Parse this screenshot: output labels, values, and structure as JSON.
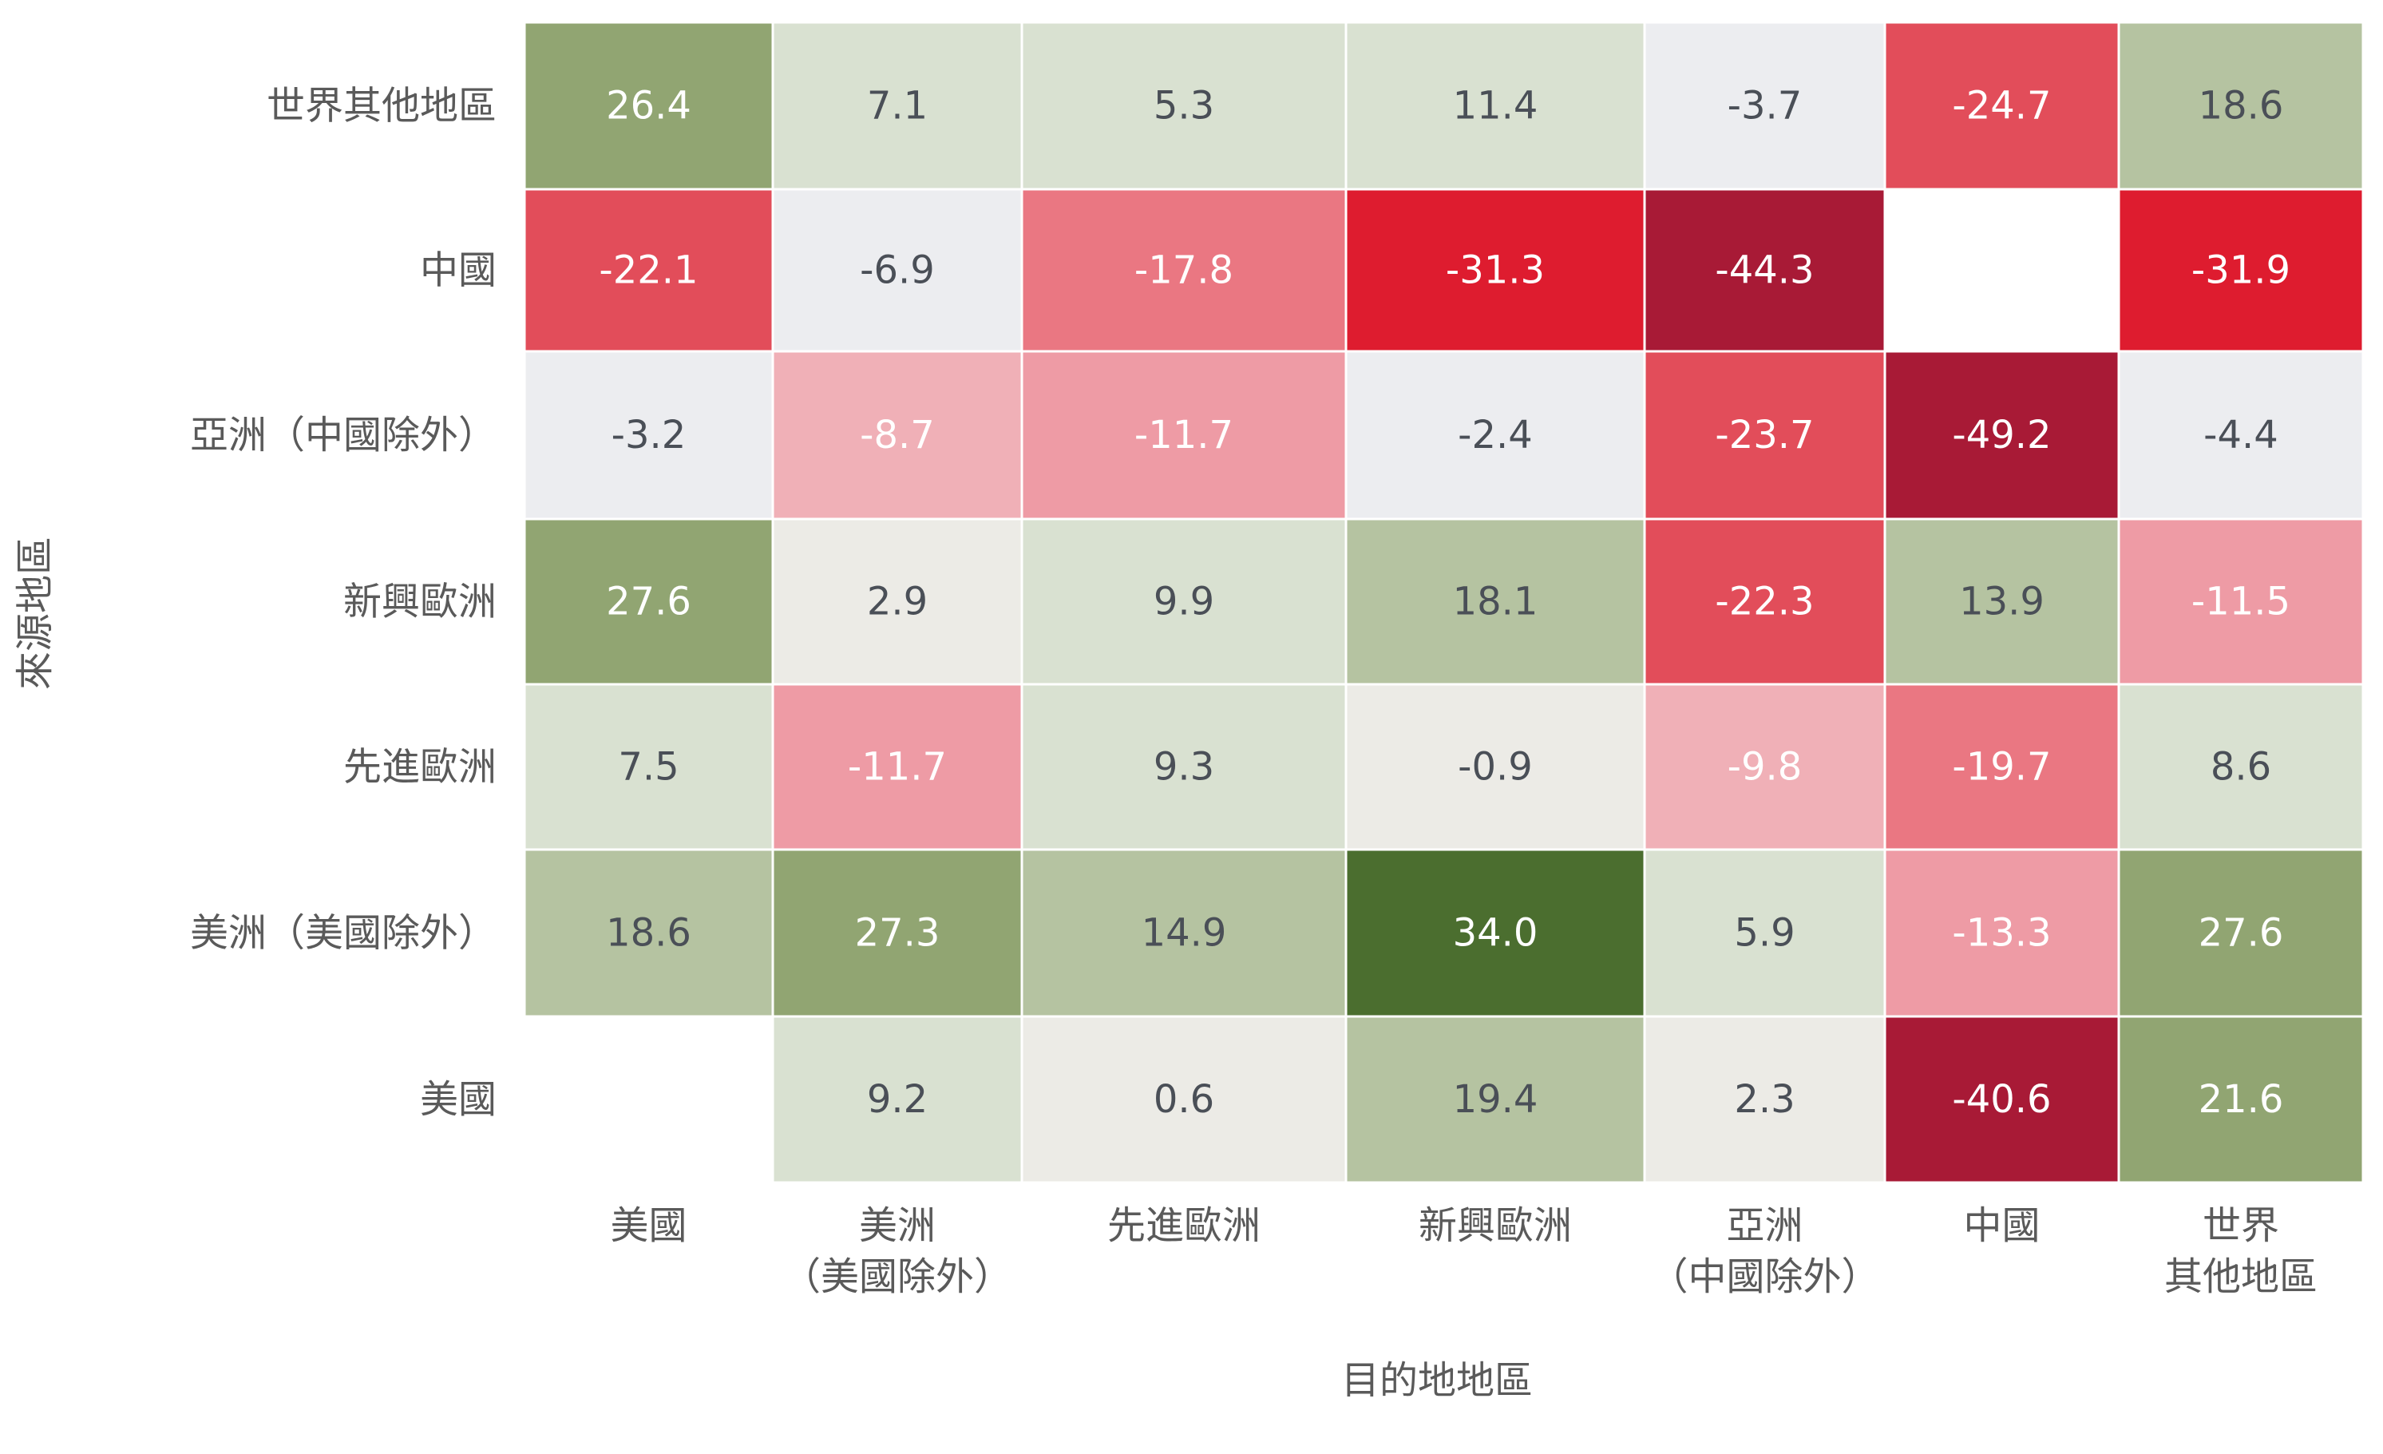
{
  "chart_data": {
    "type": "heatmap",
    "title": "",
    "xlabel": "目的地地區",
    "ylabel": "來源地區",
    "columns": [
      [
        "美國"
      ],
      [
        "美洲",
        "（美國除外）"
      ],
      [
        "先進歐洲"
      ],
      [
        "新興歐洲"
      ],
      [
        "亞洲",
        "（中國除外）"
      ],
      [
        "中國"
      ],
      [
        "世界",
        "其他地區"
      ]
    ],
    "rows": [
      "世界其他地區",
      "中國",
      "亞洲（中國除外）",
      "新興歐洲",
      "先進歐洲",
      "美洲（美國除外）",
      "美國"
    ],
    "values": [
      [
        26.4,
        7.1,
        5.3,
        11.4,
        -3.7,
        -24.7,
        18.6
      ],
      [
        -22.1,
        -6.9,
        -17.8,
        -31.3,
        -44.3,
        null,
        -31.9
      ],
      [
        -3.2,
        -8.7,
        -11.7,
        -2.4,
        -23.7,
        -49.2,
        -4.4
      ],
      [
        27.6,
        2.9,
        9.9,
        18.1,
        -22.3,
        13.9,
        -11.5
      ],
      [
        7.5,
        -11.7,
        9.3,
        -0.9,
        -9.8,
        -19.7,
        8.6
      ],
      [
        18.6,
        27.3,
        14.9,
        34.0,
        5.9,
        -13.3,
        27.6
      ],
      [
        null,
        9.2,
        0.6,
        19.4,
        2.3,
        -40.6,
        21.6
      ]
    ],
    "grid": false,
    "legend": "none"
  }
}
